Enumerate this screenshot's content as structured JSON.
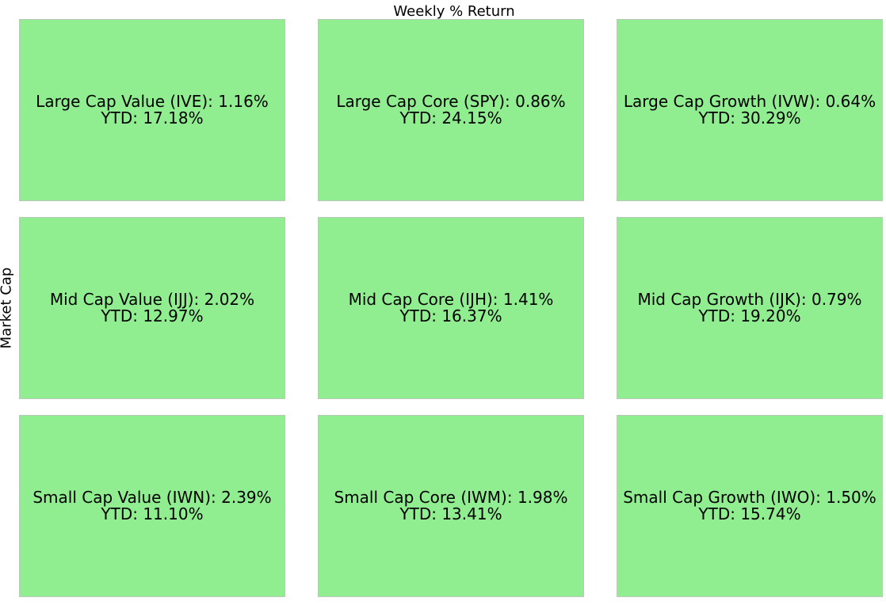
{
  "chart_data": {
    "type": "heatmap",
    "title": "Weekly % Return",
    "ylabel": "Market Cap",
    "xlabel": "",
    "cell_color": "#90ee90",
    "rows": [
      [
        {
          "label": "Large Cap Value (IVE): 1.16%",
          "ytd": "YTD: 17.18%",
          "weekly": 1.16,
          "ytd_value": 17.18
        },
        {
          "label": "Large Cap Core (SPY): 0.86%",
          "ytd": "YTD: 24.15%",
          "weekly": 0.86,
          "ytd_value": 24.15
        },
        {
          "label": "Large Cap Growth (IVW): 0.64%",
          "ytd": "YTD: 30.29%",
          "weekly": 0.64,
          "ytd_value": 30.29
        }
      ],
      [
        {
          "label": "Mid Cap Value (IJJ): 2.02%",
          "ytd": "YTD: 12.97%",
          "weekly": 2.02,
          "ytd_value": 12.97
        },
        {
          "label": "Mid Cap Core (IJH): 1.41%",
          "ytd": "YTD: 16.37%",
          "weekly": 1.41,
          "ytd_value": 16.37
        },
        {
          "label": "Mid Cap Growth (IJK): 0.79%",
          "ytd": "YTD: 19.20%",
          "weekly": 0.79,
          "ytd_value": 19.2
        }
      ],
      [
        {
          "label": "Small Cap Value (IWN): 2.39%",
          "ytd": "YTD: 11.10%",
          "weekly": 2.39,
          "ytd_value": 11.1
        },
        {
          "label": "Small Cap Core (IWM): 1.98%",
          "ytd": "YTD: 13.41%",
          "weekly": 1.98,
          "ytd_value": 13.41
        },
        {
          "label": "Small Cap Growth (IWO): 1.50%",
          "ytd": "YTD: 15.74%",
          "weekly": 1.5,
          "ytd_value": 15.74
        }
      ]
    ]
  }
}
